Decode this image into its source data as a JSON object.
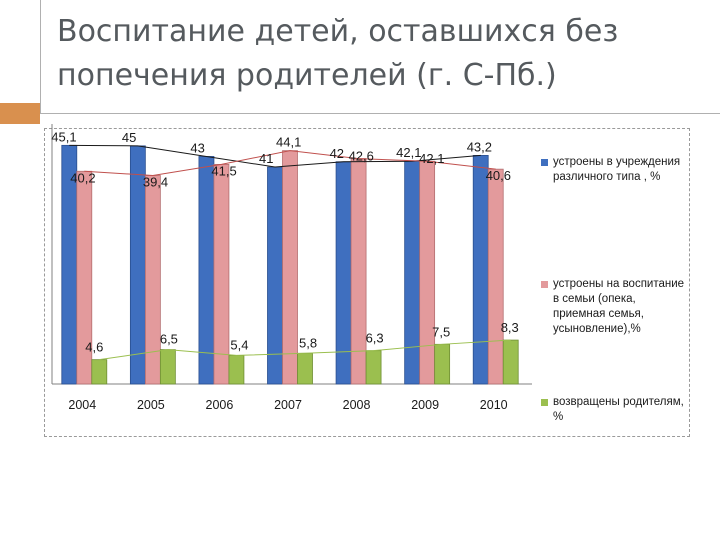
{
  "slide": {
    "title_line1": "Воспитание детей, оставшихся без",
    "title_line2": "попечения родителей (г. С-Пб.)",
    "accent_color": "#d9904e"
  },
  "chart_data": {
    "type": "bar",
    "categories": [
      "2004",
      "2005",
      "2006",
      "2007",
      "2008",
      "2009",
      "2010"
    ],
    "series": [
      {
        "name": "устроены в учреждения различного типа , %",
        "color": "#3f6fbf",
        "values": [
          45.1,
          45,
          43,
          41,
          42,
          42.1,
          43.2
        ],
        "labels": [
          "45,1",
          "45",
          "43",
          "41",
          "42",
          "42,1",
          "43,2"
        ]
      },
      {
        "name": "устроены на воспитание в семьи (опека, приемная семья, усыновление),%",
        "color": "#e39a9c",
        "values": [
          40.2,
          39.4,
          41.5,
          44.1,
          42.6,
          42.1,
          40.6
        ],
        "labels": [
          "40,2",
          "39,4",
          "41,5",
          "44,1",
          "42,6",
          "42,1",
          "40,6"
        ]
      },
      {
        "name": "возвращены родителям, %",
        "color": "#9bbf4f",
        "values": [
          4.6,
          6.5,
          5.4,
          5.8,
          6.3,
          7.5,
          8.3
        ],
        "labels": [
          "4,6",
          "6,5",
          "5,4",
          "5,8",
          "6,3",
          "7,5",
          "8,3"
        ]
      }
    ],
    "ylim": [
      0,
      48
    ],
    "grid": false,
    "legend_position": "right",
    "trend_lines": true
  }
}
